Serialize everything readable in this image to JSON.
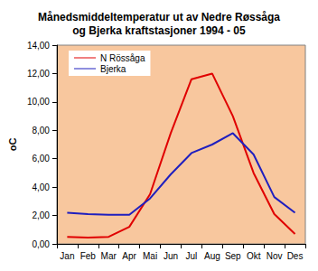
{
  "chart_data": {
    "type": "line",
    "title": "Månedsmiddeltemperatur ut av Nedre Røssåga\nog Bjerka kraftstasjoner 1994 - 05",
    "y_label": "oC",
    "categories": [
      "Jan",
      "Feb",
      "Mar",
      "Apr",
      "Mai",
      "Jun",
      "Jul",
      "Aug",
      "Sep",
      "Okt",
      "Nov",
      "Des"
    ],
    "series": [
      {
        "name": "N Rössåga",
        "color": "#e00000",
        "values": [
          0.5,
          0.45,
          0.5,
          1.2,
          3.5,
          7.8,
          11.6,
          12.0,
          9.0,
          5.0,
          2.1,
          0.7
        ]
      },
      {
        "name": "Bjerka",
        "color": "#1f1fbf",
        "values": [
          2.2,
          2.1,
          2.05,
          2.05,
          3.2,
          4.9,
          6.4,
          7.0,
          7.8,
          6.3,
          3.3,
          2.2
        ]
      }
    ],
    "ylim": [
      0,
      14
    ],
    "yticks": [
      {
        "value": 0,
        "label": "0,00"
      },
      {
        "value": 2,
        "label": "2,00"
      },
      {
        "value": 4,
        "label": "4,00"
      },
      {
        "value": 6,
        "label": "6,00"
      },
      {
        "value": 8,
        "label": "8,00"
      },
      {
        "value": 10,
        "label": "10,00"
      },
      {
        "value": 12,
        "label": "12,00"
      },
      {
        "value": 14,
        "label": "14,00"
      }
    ],
    "grid": false,
    "legend": "upper left"
  }
}
